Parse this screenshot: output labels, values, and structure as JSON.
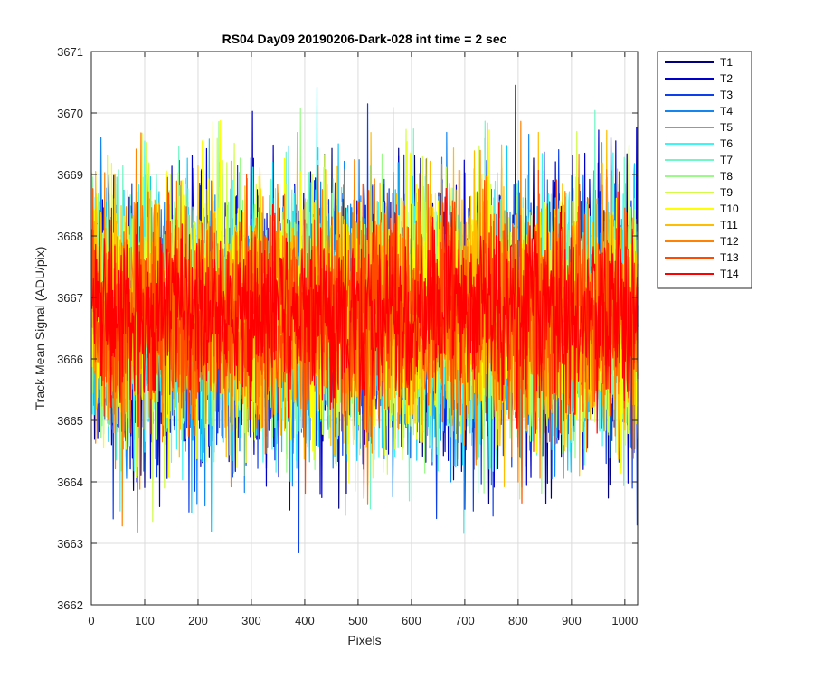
{
  "chart_data": {
    "type": "line",
    "title": "RS04 Day09 20190206-Dark-028 int time = 2 sec",
    "xlabel": "Pixels",
    "ylabel": "Track Mean Signal (ADU/pix)",
    "xlim": [
      0,
      1024
    ],
    "ylim": [
      3662,
      3671
    ],
    "xticks": [
      0,
      100,
      200,
      300,
      400,
      500,
      600,
      700,
      800,
      900,
      1000
    ],
    "yticks": [
      3662,
      3663,
      3664,
      3665,
      3666,
      3667,
      3668,
      3669,
      3670,
      3671
    ],
    "grid": true,
    "legend_position": "outside-top-right",
    "series_style": "noisy dark-signal traces, roughly 3664-3670 ADU/pix, centred near 3666.7",
    "x_range": [
      1,
      1024
    ],
    "series": [
      {
        "name": "T1",
        "color": "#00007f",
        "mean": 3666.6,
        "spread": 1.1
      },
      {
        "name": "T2",
        "color": "#0000c8",
        "mean": 3666.6,
        "spread": 1.1
      },
      {
        "name": "T3",
        "color": "#0d40ea",
        "mean": 3666.6,
        "spread": 1.05
      },
      {
        "name": "T4",
        "color": "#1386f0",
        "mean": 3666.6,
        "spread": 1.05
      },
      {
        "name": "T5",
        "color": "#14c8f8",
        "mean": 3666.65,
        "spread": 1.05
      },
      {
        "name": "T6",
        "color": "#3df5f5",
        "mean": 3666.65,
        "spread": 1.0
      },
      {
        "name": "T7",
        "color": "#6ff7c5",
        "mean": 3666.7,
        "spread": 1.0
      },
      {
        "name": "T8",
        "color": "#9afb89",
        "mean": 3666.7,
        "spread": 1.0
      },
      {
        "name": "T9",
        "color": "#d2fc47",
        "mean": 3666.7,
        "spread": 1.0
      },
      {
        "name": "T10",
        "color": "#ffff00",
        "mean": 3666.75,
        "spread": 1.0
      },
      {
        "name": "T11",
        "color": "#ffbe00",
        "mean": 3666.75,
        "spread": 1.0
      },
      {
        "name": "T12",
        "color": "#ff8200",
        "mean": 3666.75,
        "spread": 0.95
      },
      {
        "name": "T13",
        "color": "#ff4a00",
        "mean": 3666.75,
        "spread": 0.9
      },
      {
        "name": "T14",
        "color": "#ff0000",
        "mean": 3666.75,
        "spread": 0.75
      }
    ]
  }
}
